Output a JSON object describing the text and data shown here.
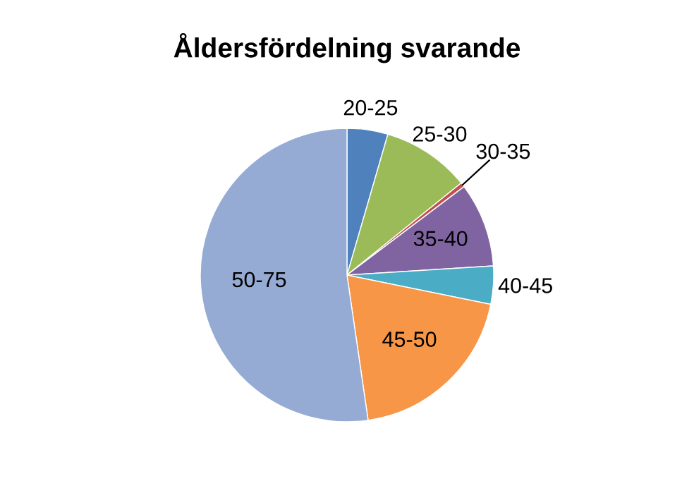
{
  "chart_data": {
    "type": "pie",
    "title": "Åldersfördelning svarande",
    "categories": [
      "20-25",
      "25-30",
      "30-35",
      "35-40",
      "40-45",
      "45-50",
      "50-75"
    ],
    "values": [
      4.5,
      9.7,
      0.5,
      9.3,
      4.2,
      19.5,
      52.3
    ],
    "colors": [
      "#4f81bd",
      "#9bbb59",
      "#c0504d",
      "#8064a2",
      "#4bacc6",
      "#f79646",
      "#95abd4"
    ],
    "legend": false
  }
}
